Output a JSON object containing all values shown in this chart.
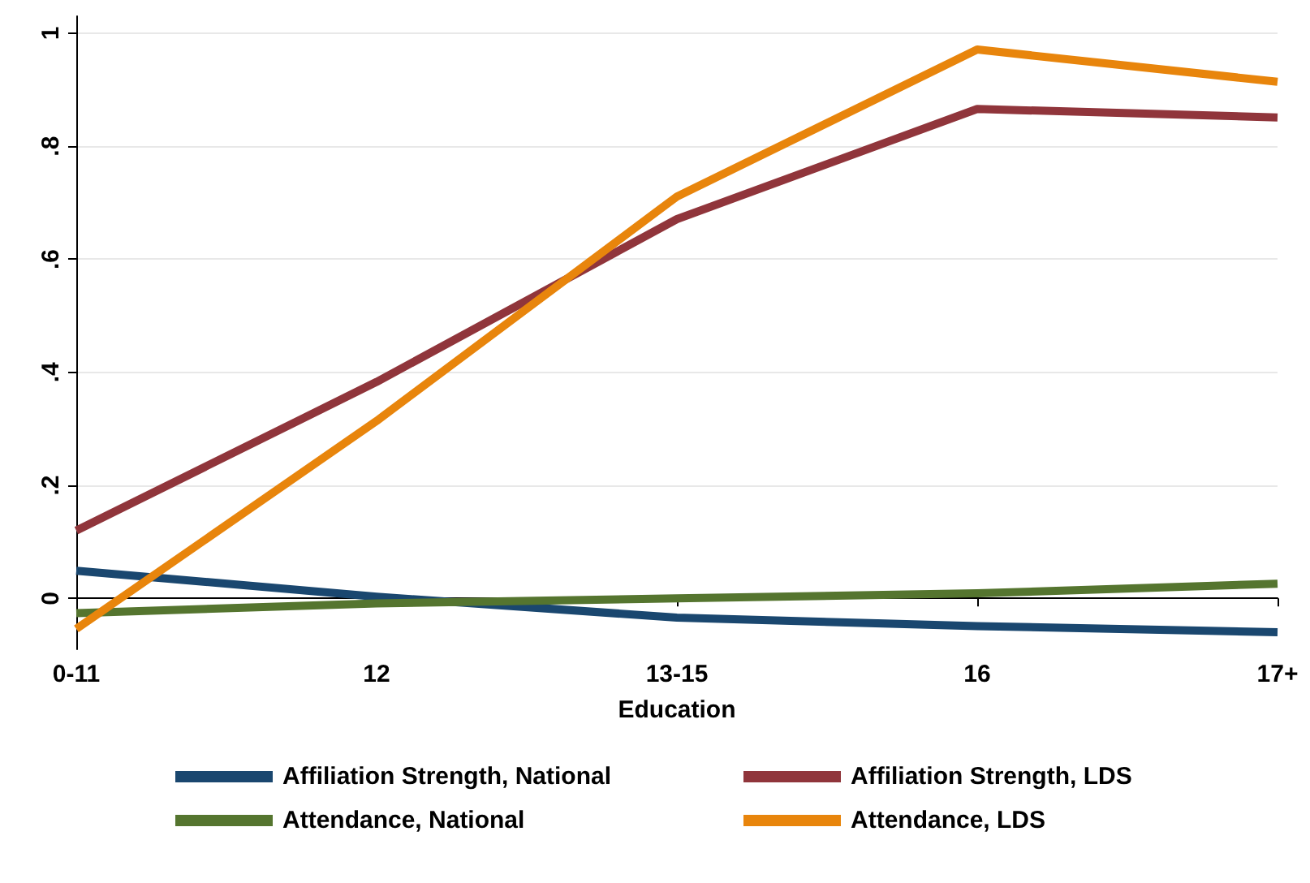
{
  "chart_data": {
    "type": "line",
    "xlabel": "Education",
    "categories": [
      "0-11",
      "12",
      "13-15",
      "16",
      "17+"
    ],
    "series": [
      {
        "name": "Affiliation Strength, National",
        "color": "#1a476f",
        "values": [
          0.049,
          0.003,
          -0.034,
          -0.049,
          -0.06
        ]
      },
      {
        "name": "Affiliation Strength, LDS",
        "color": "#90353b",
        "values": [
          0.12,
          0.383,
          0.671,
          0.866,
          0.851
        ]
      },
      {
        "name": "Attendance, National",
        "color": "#55752f",
        "values": [
          -0.026,
          -0.009,
          0,
          0.009,
          0.026
        ]
      },
      {
        "name": "Attendance, LDS",
        "color": "#e8850c",
        "values": [
          -0.054,
          0.314,
          0.711,
          0.971,
          0.914
        ]
      }
    ],
    "ylim": [
      -0.09,
      1.03
    ],
    "yticks": [
      0,
      {
        "value": 0.2,
        "label": ".2"
      },
      {
        "value": 0.4,
        "label": ".4"
      },
      {
        "value": 0.6,
        "label": ".6"
      },
      {
        "value": 0.8,
        "label": ".8"
      },
      1
    ],
    "grid": "y",
    "legend": "bottom",
    "marker": "none",
    "line_style": "solid"
  }
}
